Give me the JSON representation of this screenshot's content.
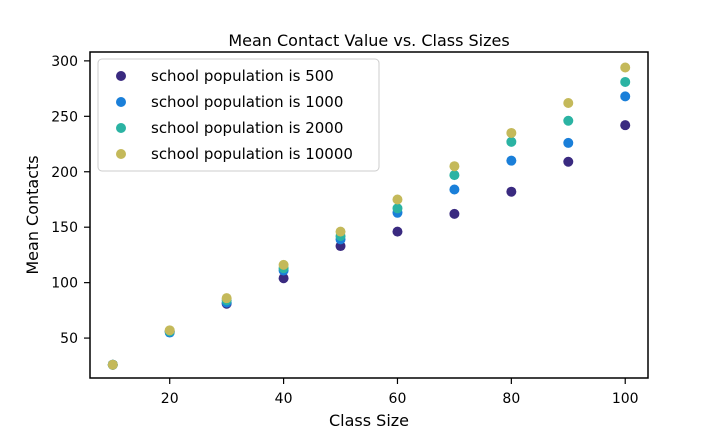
{
  "chart_data": {
    "type": "scatter",
    "title": "Mean Contact Value vs. Class Sizes",
    "xlabel": "Class Size",
    "ylabel": "Mean Contacts",
    "xlim": [
      6,
      104
    ],
    "ylim": [
      14,
      308
    ],
    "xticks": [
      20,
      40,
      60,
      80,
      100
    ],
    "yticks": [
      50,
      100,
      150,
      200,
      250,
      300
    ],
    "grid": false,
    "legend_position": "upper-left",
    "series": [
      {
        "name": "school population is 500",
        "color": "#3a2a80",
        "x": [
          10,
          20,
          30,
          40,
          50,
          60,
          70,
          80,
          90,
          100
        ],
        "y": [
          26,
          56,
          81,
          104,
          133,
          146,
          162,
          182,
          209,
          242
        ]
      },
      {
        "name": "school population is 1000",
        "color": "#1a7fd9",
        "x": [
          10,
          20,
          30,
          40,
          50,
          60,
          70,
          80,
          90,
          100
        ],
        "y": [
          26,
          55,
          82,
          111,
          139,
          163,
          184,
          210,
          226,
          268
        ]
      },
      {
        "name": "school population is 2000",
        "color": "#2bb3a3",
        "x": [
          10,
          20,
          30,
          40,
          50,
          60,
          70,
          80,
          90,
          100
        ],
        "y": [
          26,
          56,
          84,
          113,
          142,
          167,
          197,
          227,
          246,
          281
        ]
      },
      {
        "name": "school population is 10000",
        "color": "#c4b95a",
        "x": [
          10,
          20,
          30,
          40,
          50,
          60,
          70,
          80,
          90,
          100
        ],
        "y": [
          26,
          57,
          86,
          116,
          146,
          175,
          205,
          235,
          262,
          294
        ]
      }
    ]
  }
}
